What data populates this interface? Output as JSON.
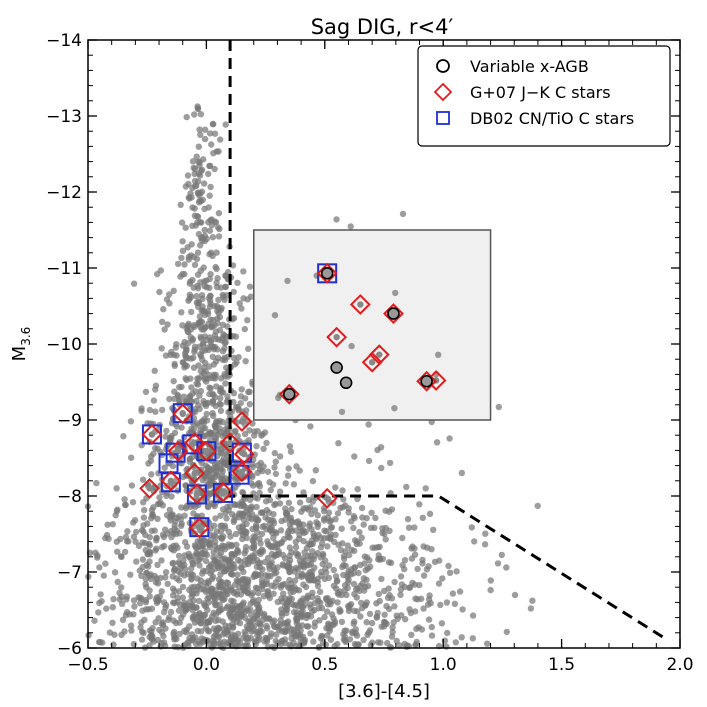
{
  "chart_data": {
    "type": "scatter",
    "title": "Sag DIG, r<4′",
    "xlabel": "[3.6]-[4.5]",
    "ylabel_main": "M",
    "ylabel_sub": "3.6",
    "xlim": [
      -0.5,
      2.0
    ],
    "ylim": [
      -14,
      -6
    ],
    "y_inverted": true,
    "grid": false,
    "legend_position": "top-right",
    "x_ticks": [
      "−0.5",
      "0.0",
      "0.5",
      "1.0",
      "1.5",
      "2.0"
    ],
    "y_ticks": [
      "−14",
      "−13",
      "−12",
      "−11",
      "−10",
      "−9",
      "−8",
      "−7",
      "−6"
    ],
    "x_tick_values": [
      -0.5,
      0.0,
      0.5,
      1.0,
      1.5,
      2.0
    ],
    "y_tick_values": [
      -14,
      -13,
      -12,
      -11,
      -10,
      -9,
      -8,
      -7,
      -6
    ],
    "colors": {
      "background_points": "#777777",
      "variable": "#000000",
      "g07": "#e31a1c",
      "db02": "#1f2fd6",
      "inset_fill": "#f0f0f0",
      "inset_border": "#555555"
    },
    "selection_boundary": [
      [
        0.1,
        -14.0
      ],
      [
        0.1,
        -8.0
      ],
      [
        0.98,
        -8.0
      ],
      [
        1.95,
        -6.1
      ]
    ],
    "inset_region": {
      "x": [
        0.2,
        1.2
      ],
      "y": [
        -11.5,
        -9.0
      ]
    },
    "series": [
      {
        "name": "Variable x-AGB",
        "marker": "circle",
        "points": [
          [
            0.51,
            -10.93
          ],
          [
            0.79,
            -10.4
          ],
          [
            0.55,
            -9.69
          ],
          [
            0.59,
            -9.49
          ],
          [
            0.35,
            -9.34
          ],
          [
            0.93,
            -9.51
          ]
        ]
      },
      {
        "name": "G+07 J−K C stars",
        "marker": "diamond",
        "points": [
          [
            0.51,
            -10.93
          ],
          [
            0.65,
            -10.52
          ],
          [
            0.79,
            -10.4
          ],
          [
            0.55,
            -10.09
          ],
          [
            0.73,
            -9.86
          ],
          [
            0.7,
            -9.76
          ],
          [
            0.35,
            -9.34
          ],
          [
            0.93,
            -9.51
          ],
          [
            0.97,
            -9.52
          ],
          [
            -0.1,
            -9.08
          ],
          [
            -0.23,
            -8.81
          ],
          [
            0.15,
            -8.98
          ],
          [
            -0.05,
            -8.7
          ],
          [
            -0.12,
            -8.59
          ],
          [
            0.1,
            -8.7
          ],
          [
            0.16,
            -8.55
          ],
          [
            0.15,
            -8.32
          ],
          [
            -0.05,
            -8.3
          ],
          [
            -0.15,
            -8.2
          ],
          [
            -0.04,
            -8.03
          ],
          [
            0.07,
            -8.05
          ],
          [
            -0.24,
            -8.1
          ],
          [
            0.51,
            -7.97
          ],
          [
            -0.03,
            -7.58
          ],
          [
            0.0,
            -8.59
          ]
        ]
      },
      {
        "name": "DB02 CN/TiO C stars",
        "marker": "square",
        "points": [
          [
            0.51,
            -10.93
          ],
          [
            -0.1,
            -9.09
          ],
          [
            -0.23,
            -8.81
          ],
          [
            -0.06,
            -8.68
          ],
          [
            -0.13,
            -8.57
          ],
          [
            0.0,
            -8.59
          ],
          [
            0.15,
            -8.57
          ],
          [
            -0.16,
            -8.43
          ],
          [
            0.14,
            -8.28
          ],
          [
            -0.15,
            -8.18
          ],
          [
            -0.04,
            -8.02
          ],
          [
            0.07,
            -8.04
          ],
          [
            -0.03,
            -7.59
          ]
        ]
      }
    ],
    "background_cloud": [
      {
        "x_center": -0.02,
        "x_spread": 0.05,
        "y_range": [
          -13.2,
          -11.0
        ],
        "count": 120
      },
      {
        "x_center": 0.0,
        "x_spread": 0.09,
        "y_range": [
          -11.0,
          -9.5
        ],
        "count": 260
      },
      {
        "x_center": 0.02,
        "x_spread": 0.14,
        "y_range": [
          -9.5,
          -8.0
        ],
        "count": 520
      },
      {
        "x_center": 0.1,
        "x_spread": 0.3,
        "y_range": [
          -8.0,
          -6.0
        ],
        "count": 1350
      },
      {
        "x_center": 0.55,
        "x_spread": 0.3,
        "y_range": [
          -8.2,
          -6.0
        ],
        "count": 220
      },
      {
        "x_center": 0.9,
        "x_spread": 0.2,
        "y_range": [
          -7.6,
          -6.0
        ],
        "count": 90
      },
      {
        "x_center": 0.7,
        "x_spread": 0.18,
        "y_range": [
          -12.0,
          -8.3
        ],
        "count": 45
      }
    ]
  }
}
